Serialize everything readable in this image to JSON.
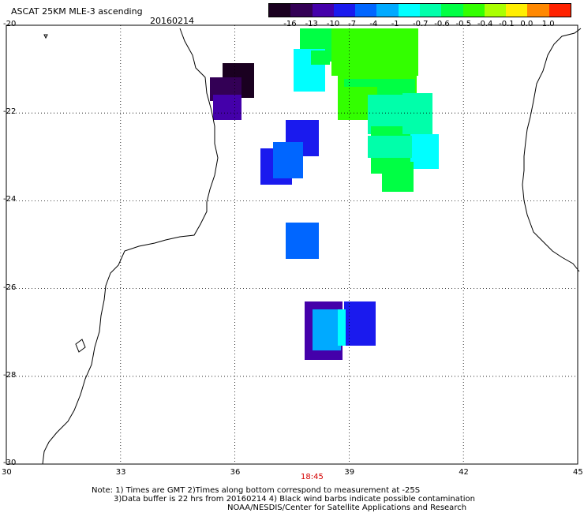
{
  "title": "ASCAT 25KM MLE-3 ascending",
  "date": "20160214",
  "colorscale": {
    "labels": [
      "-16",
      "-13",
      "-10",
      "-7",
      "-4",
      "-1",
      "-0.7",
      "-0.6",
      "-0.5",
      "-0.4",
      "-0.1",
      "0.0",
      "1.0"
    ],
    "colors": [
      "#1a0020",
      "#330055",
      "#4400aa",
      "#1a1aee",
      "#0066ff",
      "#00aaff",
      "#00ffff",
      "#00ffaa",
      "#00ff44",
      "#33ff00",
      "#aaff00",
      "#ffee00",
      "#ff8800",
      "#ff2200"
    ]
  },
  "lat_labels": [
    "-20",
    "-22",
    "-24",
    "-26",
    "-28",
    "-30"
  ],
  "lon_labels": [
    "30",
    "33",
    "36",
    "39",
    "42",
    "45"
  ],
  "time_label": "18:45",
  "notes": {
    "line1": "Note: 1) Times are GMT 2)Times along bottom correspond to measurement at -25S",
    "line2": "3)Data buffer is 22 hrs from 20160214 4) Black wind barbs indicate possible contamination",
    "line3": "NOAA/NESDIS/Center for Satellite Applications and Research"
  }
}
